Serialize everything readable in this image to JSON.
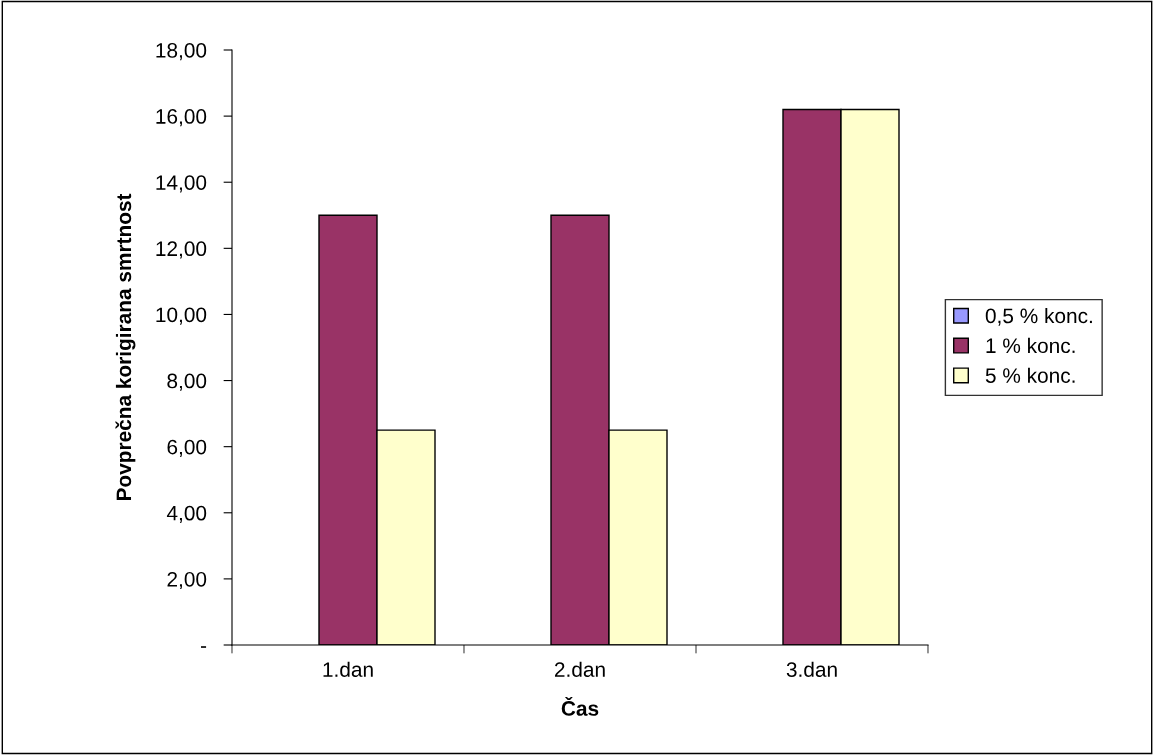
{
  "chart_data": {
    "type": "bar",
    "xlabel": "Čas",
    "ylabel": "Povprečna korigirana smrtnost",
    "categories": [
      "1.dan",
      "2.dan",
      "3.dan"
    ],
    "series": [
      {
        "name": "0,5 % konc.",
        "color": "#9999ff",
        "values": [
          0,
          0,
          0
        ]
      },
      {
        "name": "1 % konc.",
        "color": "#993366",
        "values": [
          13.0,
          13.0,
          16.2
        ]
      },
      {
        "name": "5 % konc.",
        "color": "#ffffcc",
        "values": [
          6.5,
          6.5,
          16.2
        ]
      }
    ],
    "ylim": [
      0,
      18
    ],
    "yticks": [
      {
        "value": 0,
        "label": "-"
      },
      {
        "value": 2,
        "label": "2,00"
      },
      {
        "value": 4,
        "label": "4,00"
      },
      {
        "value": 6,
        "label": "6,00"
      },
      {
        "value": 8,
        "label": "8,00"
      },
      {
        "value": 10,
        "label": "10,00"
      },
      {
        "value": 12,
        "label": "12,00"
      },
      {
        "value": 14,
        "label": "14,00"
      },
      {
        "value": 16,
        "label": "16,00"
      },
      {
        "value": 18,
        "label": "18,00"
      }
    ],
    "grid": false,
    "legend": "right"
  }
}
